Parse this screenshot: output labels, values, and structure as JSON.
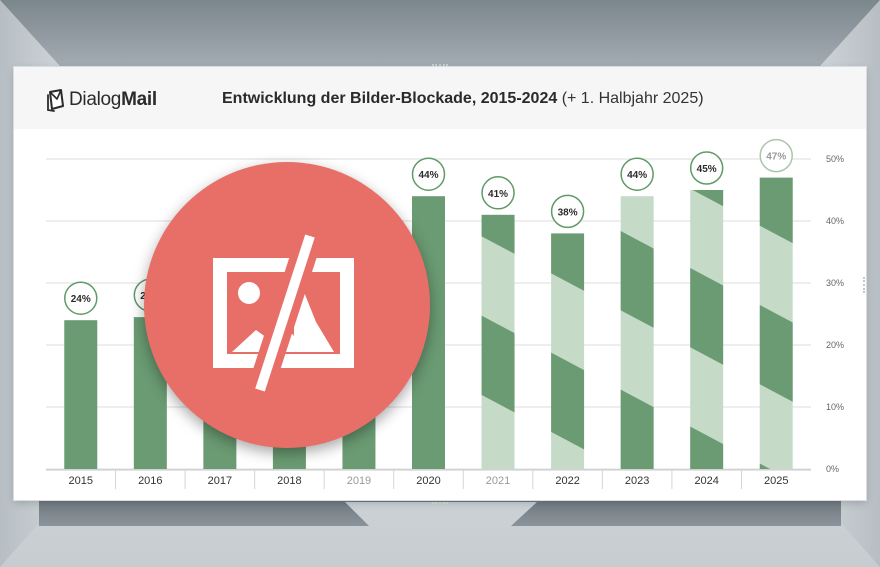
{
  "brand": {
    "logo_prefix": "Dialog",
    "logo_suffix": "Mail",
    "logo_icon": "mail-envelope-icon"
  },
  "header": {
    "title_main": "Entwicklung der Bilder-Blockade, 2015-2024",
    "title_extra": "(+ 1. Halbjahr 2025)"
  },
  "overlay": {
    "icon": "blocked-image-icon",
    "color": "#e86f68"
  },
  "colors": {
    "bar_dark": "#6a9b72",
    "bar_light": "#c5dbc8",
    "label_ring": "#5f9a67",
    "grid": "#dcdcdc"
  },
  "chart_data": {
    "type": "bar",
    "title": "Entwicklung der Bilder-Blockade, 2015-2024 (+ 1. Halbjahr 2025)",
    "categories": [
      "2015",
      "2016",
      "2017",
      "2018",
      "2019",
      "2020",
      "2021",
      "2022",
      "2023",
      "2024",
      "2025"
    ],
    "values": [
      24,
      24.5,
      25,
      25,
      25,
      44,
      41,
      38,
      44,
      45,
      47
    ],
    "data_labels": [
      "24%",
      "24%",
      "",
      "",
      "",
      "44%",
      "41%",
      "38%",
      "44%",
      "45%",
      "47%"
    ],
    "y_ticks": [
      "0%",
      "10%",
      "20%",
      "30%",
      "40%",
      "50%"
    ],
    "ylim": [
      0,
      50
    ],
    "grid": true,
    "y_axis_position": "right",
    "xlabel": "",
    "ylabel": ""
  }
}
